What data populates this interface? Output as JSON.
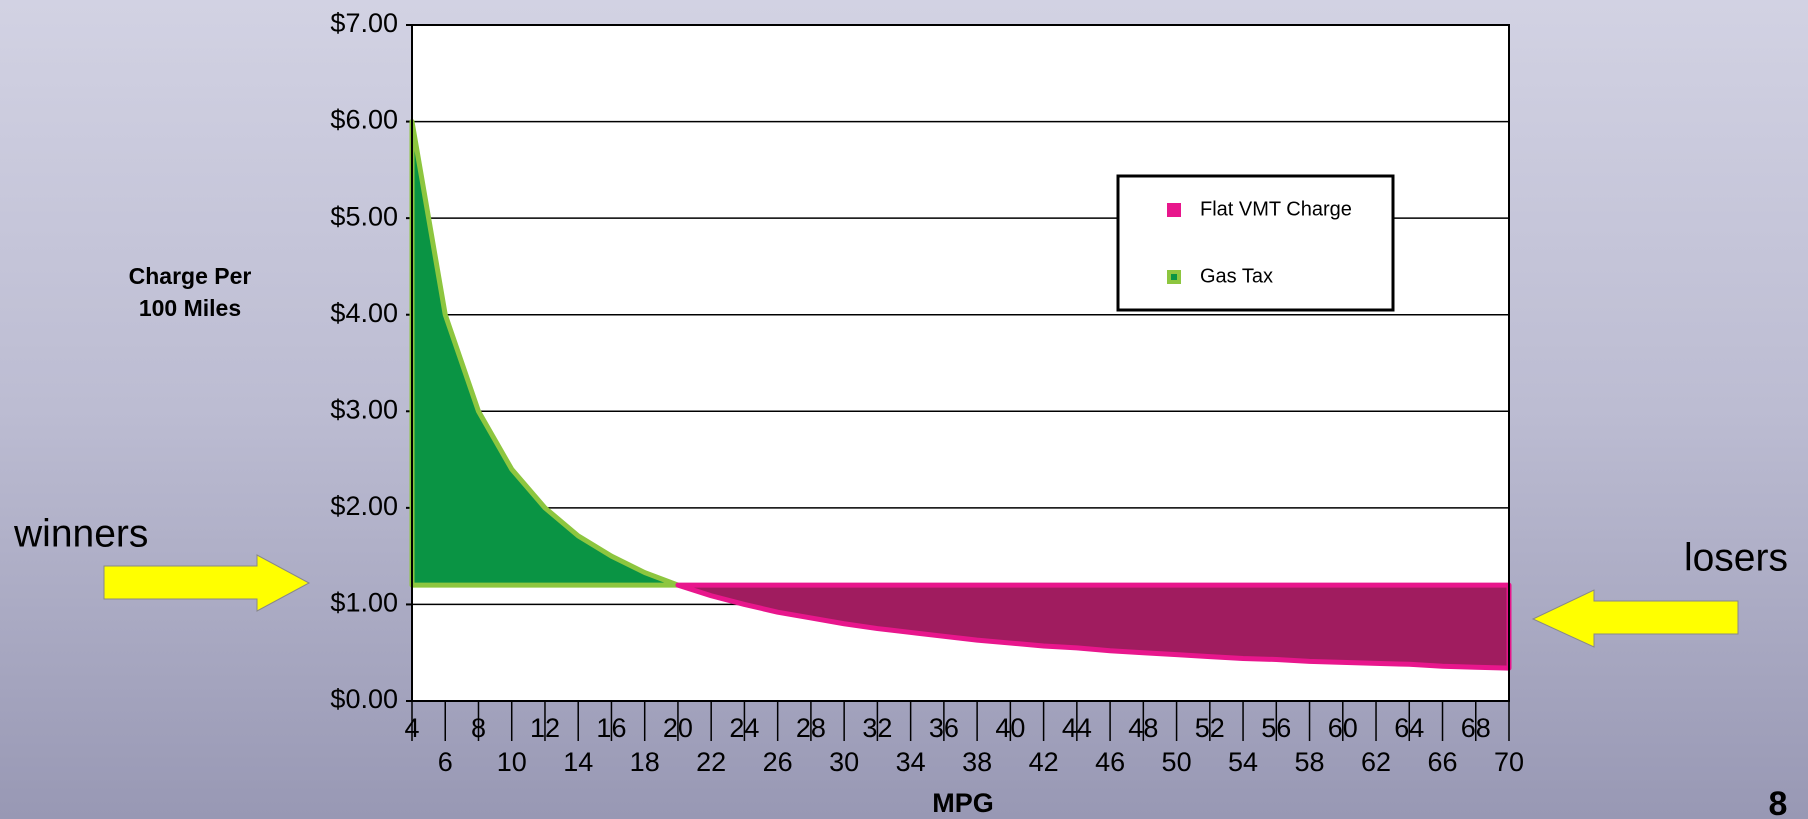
{
  "chart_data": {
    "type": "area-difference",
    "xlabel": "MPG",
    "ylabel": [
      "Charge Per",
      "100 Miles"
    ],
    "x": [
      4,
      6,
      8,
      10,
      12,
      14,
      16,
      18,
      20,
      22,
      24,
      26,
      28,
      30,
      32,
      34,
      36,
      38,
      40,
      42,
      44,
      46,
      48,
      50,
      52,
      54,
      56,
      58,
      60,
      62,
      64,
      66,
      68,
      70
    ],
    "xlim": [
      4,
      70
    ],
    "xticks": [
      4,
      6,
      8,
      10,
      12,
      14,
      16,
      18,
      20,
      22,
      24,
      26,
      28,
      30,
      32,
      34,
      36,
      38,
      40,
      42,
      44,
      46,
      48,
      50,
      52,
      54,
      56,
      58,
      60,
      62,
      64,
      66,
      68,
      70
    ],
    "ylim": [
      0,
      7
    ],
    "yticks": [
      {
        "value": 0,
        "label": "$0.00"
      },
      {
        "value": 1,
        "label": "$1.00"
      },
      {
        "value": 2,
        "label": "$2.00"
      },
      {
        "value": 3,
        "label": "$3.00"
      },
      {
        "value": 4,
        "label": "$4.00"
      },
      {
        "value": 5,
        "label": "$5.00"
      },
      {
        "value": 6,
        "label": "$6.00"
      },
      {
        "value": 7,
        "label": "$7.00"
      }
    ],
    "grid": true,
    "legend": "upper right",
    "series": [
      {
        "name": "Flat VMT Charge",
        "color": "#e8168c",
        "fill_color": "#a01c5f",
        "values": [
          1.2,
          1.2,
          1.2,
          1.2,
          1.2,
          1.2,
          1.2,
          1.2,
          1.2,
          1.2,
          1.2,
          1.2,
          1.2,
          1.2,
          1.2,
          1.2,
          1.2,
          1.2,
          1.2,
          1.2,
          1.2,
          1.2,
          1.2,
          1.2,
          1.2,
          1.2,
          1.2,
          1.2,
          1.2,
          1.2,
          1.2,
          1.2,
          1.2,
          1.2
        ]
      },
      {
        "name": "Gas Tax",
        "color": "#8dc63f",
        "fill_color": "#0a9444",
        "values": [
          6,
          4,
          3,
          2.4,
          2,
          1.71,
          1.5,
          1.33,
          1.2,
          1.09,
          1,
          0.92,
          0.86,
          0.8,
          0.75,
          0.71,
          0.67,
          0.63,
          0.6,
          0.57,
          0.55,
          0.52,
          0.5,
          0.48,
          0.46,
          0.44,
          0.43,
          0.41,
          0.4,
          0.39,
          0.38,
          0.36,
          0.35,
          0.34
        ]
      }
    ],
    "annotations": [
      "winners",
      "losers"
    ],
    "page_number": "8"
  }
}
